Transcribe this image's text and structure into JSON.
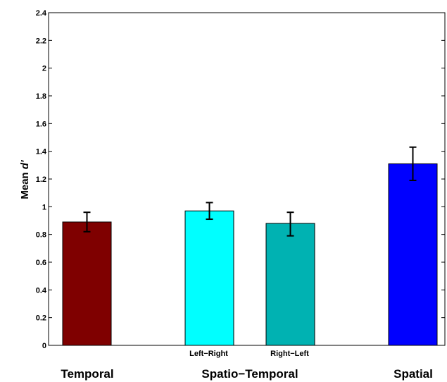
{
  "chart_data": {
    "type": "bar",
    "ylabel_prefix": "Mean ",
    "ylabel_italic": "d'",
    "ylim": [
      0,
      2.4
    ],
    "yticks": [
      "0",
      "0.2",
      "0.4",
      "0.6",
      "0.8",
      "1",
      "1.2",
      "1.4",
      "1.6",
      "1.8",
      "2",
      "2.2",
      "2.4"
    ],
    "grid": false,
    "bars": [
      {
        "group": "Temporal",
        "sublabel": "",
        "value": 0.89,
        "err_low": 0.82,
        "err_high": 0.96,
        "color": "#7f0000"
      },
      {
        "group": "Spatio−Temporal",
        "sublabel": "Left−Right",
        "value": 0.97,
        "err_low": 0.91,
        "err_high": 1.03,
        "color": "#00ffff"
      },
      {
        "group": "Spatio−Temporal",
        "sublabel": "Right−Left",
        "value": 0.88,
        "err_low": 0.79,
        "err_high": 0.96,
        "color": "#00b2b2"
      },
      {
        "group": "Spatial",
        "sublabel": "",
        "value": 1.31,
        "err_low": 1.19,
        "err_high": 1.43,
        "color": "#0000ff"
      }
    ],
    "group_labels": [
      "Temporal",
      "Spatio−Temporal",
      "Spatial"
    ]
  }
}
